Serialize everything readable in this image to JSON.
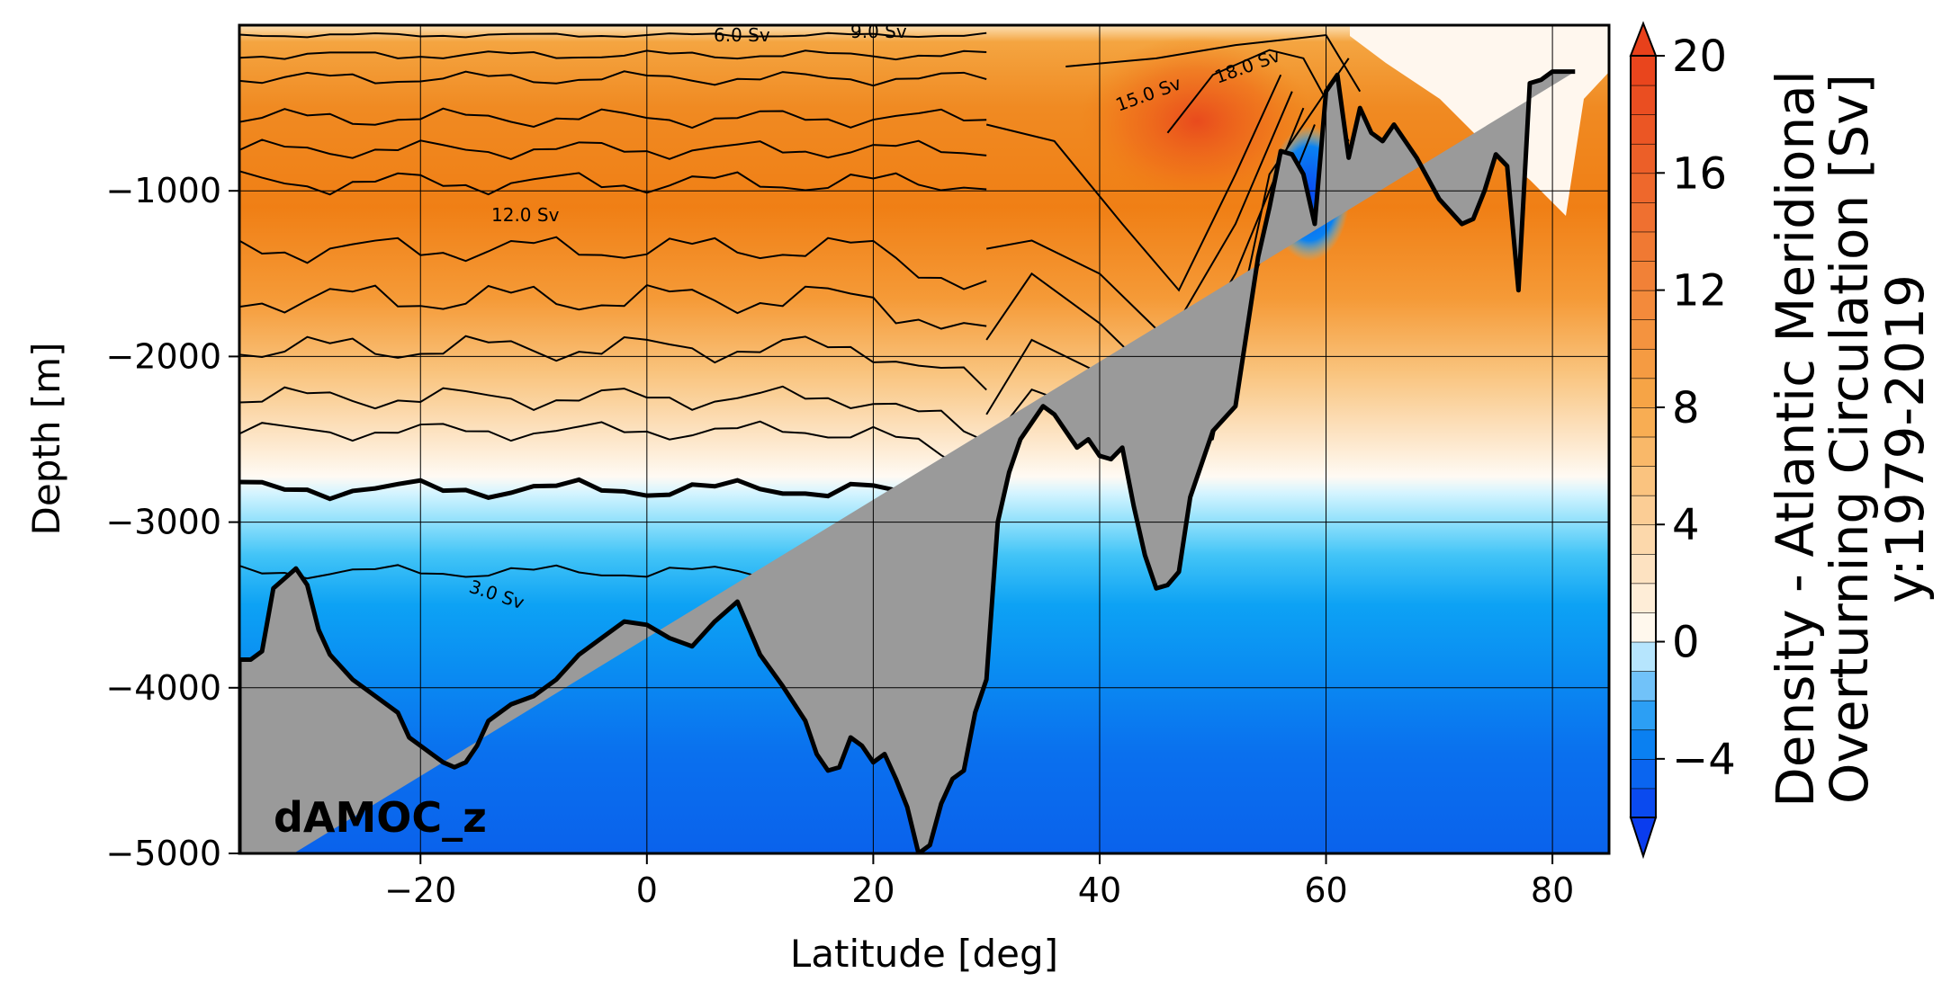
{
  "chart_data": {
    "type": "heatmap",
    "title": "",
    "panel_label": "dAMOC_z",
    "xlabel": "Latitude [deg]",
    "ylabel": "Depth [m]",
    "xlim": [
      -36,
      85
    ],
    "ylim": [
      -5000,
      0
    ],
    "x_ticks": [
      -20,
      0,
      20,
      40,
      60,
      80
    ],
    "x_tick_labels": [
      "−20",
      "0",
      "20",
      "40",
      "60",
      "80"
    ],
    "y_ticks": [
      -1000,
      -2000,
      -3000,
      -4000,
      -5000
    ],
    "y_tick_labels": [
      "−1000",
      "−2000",
      "−3000",
      "−4000",
      "−5000"
    ],
    "grid": true,
    "colorbar": {
      "label_lines": [
        "Density - Atlantic Meridional",
        "Overturning Circulation [Sv]",
        "y:1979-2019"
      ],
      "range": [
        -6,
        20
      ],
      "levels_step": 1,
      "extend": "both",
      "ticks": [
        20,
        16,
        12,
        8,
        4,
        0,
        -4
      ],
      "tick_labels": [
        "20",
        "16",
        "12",
        "8",
        "4",
        "0",
        "−4"
      ],
      "colors": {
        "min": "#0a3cee",
        "neg_mid": "#0a8df2",
        "zero_neg": "#d8f6ff",
        "zero_pos": "#fffdf8",
        "pos_mid": "#f7a848",
        "max": "#e8411b"
      }
    },
    "bathymetry_color": "#9a9a9a",
    "contour_labels": [
      "3.0 Sv",
      "6.0 Sv",
      "9.0 Sv",
      "12.0 Sv",
      "15.0 Sv",
      "18.0 Sv"
    ],
    "bathymetry": {
      "lat": [
        -36,
        -35,
        -34,
        -33,
        -31,
        -30,
        -29,
        -28,
        -26,
        -24,
        -22,
        -21,
        -20,
        -19,
        -18,
        -17,
        -16,
        -15,
        -14,
        -12,
        -10,
        -8,
        -6,
        -4,
        -2,
        0,
        2,
        4,
        6,
        8,
        10,
        12,
        14,
        15,
        16,
        17,
        18,
        19,
        20,
        21,
        22,
        23,
        24,
        25,
        26,
        27,
        28,
        29,
        30,
        31,
        32,
        33,
        34,
        35,
        36,
        37,
        38,
        39,
        40,
        41,
        42,
        43,
        44,
        45,
        46,
        47,
        48,
        50,
        52,
        54,
        55,
        56,
        57,
        58,
        59,
        60,
        61,
        62,
        63,
        64,
        65,
        66,
        68,
        70,
        72,
        73,
        74,
        75,
        76,
        77,
        78,
        79,
        80,
        81,
        82,
        83,
        85
      ],
      "depth": [
        -3830,
        -3830,
        -3780,
        -3400,
        -3280,
        -3380,
        -3650,
        -3800,
        -3950,
        -4050,
        -4150,
        -4300,
        -4350,
        -4400,
        -4450,
        -4480,
        -4450,
        -4350,
        -4200,
        -4100,
        -4050,
        -3950,
        -3800,
        -3700,
        -3600,
        -3620,
        -3700,
        -3750,
        -3600,
        -3480,
        -3800,
        -3990,
        -4200,
        -4400,
        -4500,
        -4480,
        -4300,
        -4350,
        -4450,
        -4400,
        -4550,
        -4720,
        -5000,
        -4950,
        -4700,
        -4550,
        -4500,
        -4150,
        -3950,
        -3000,
        -2700,
        -2500,
        -2400,
        -2300,
        -2350,
        -2450,
        -2550,
        -2500,
        -2600,
        -2620,
        -2550,
        -2900,
        -3200,
        -3400,
        -3380,
        -3300,
        -2850,
        -2450,
        -2300,
        -1400,
        -1100,
        -760,
        -780,
        -900,
        -1200,
        -400,
        -300,
        -800,
        -500,
        -650,
        -700,
        -600,
        -800,
        -1050,
        -1200,
        -1170,
        -1000,
        -780,
        -850,
        -1600,
        -350,
        -330,
        -280,
        -280,
        -280
      ]
    }
  }
}
